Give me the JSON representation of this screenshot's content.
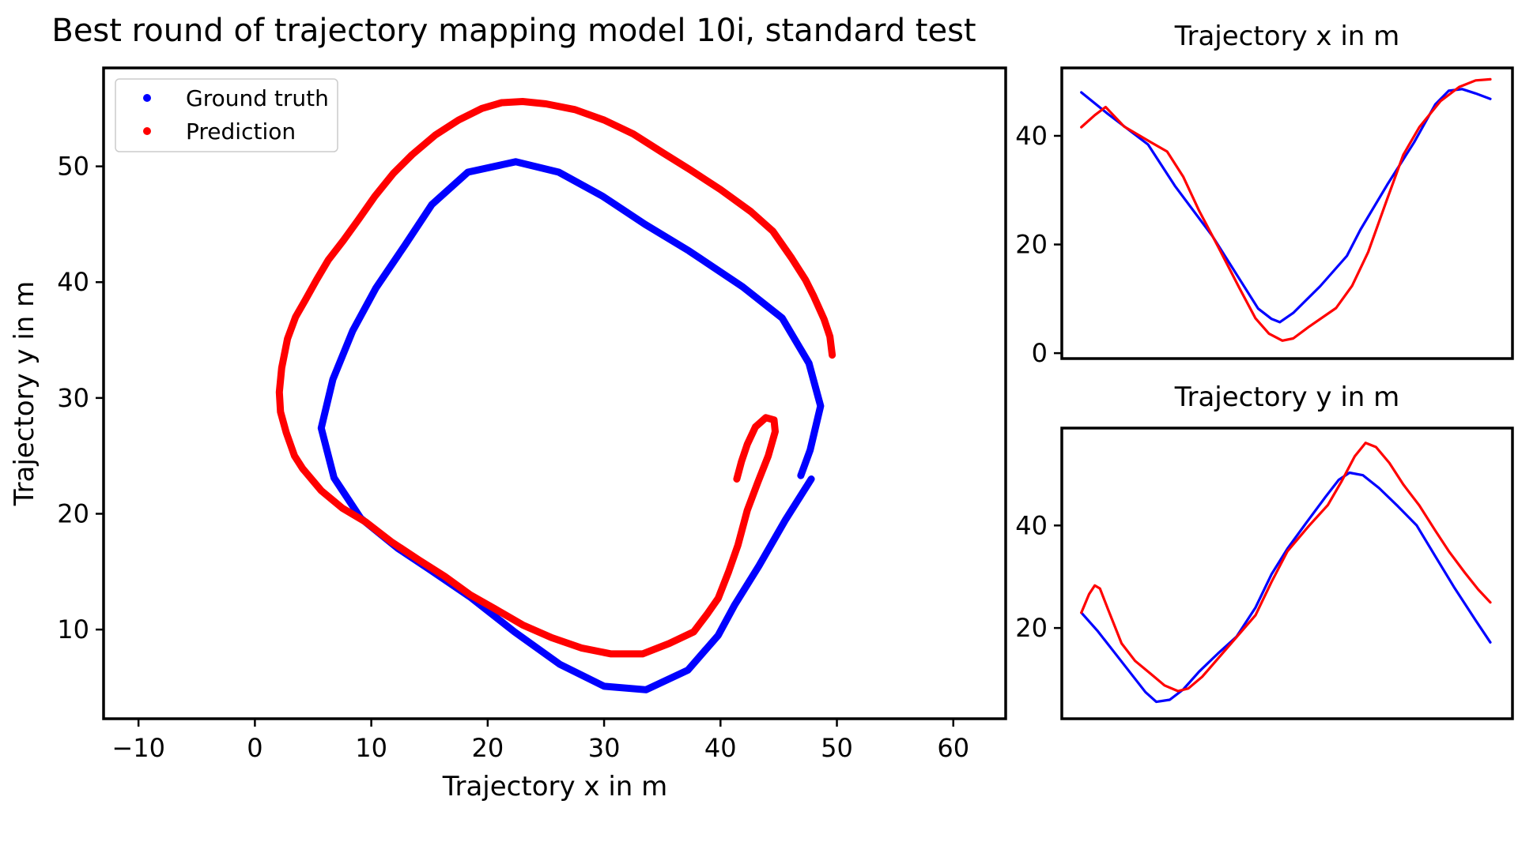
{
  "colors": {
    "ground_truth": "#0000ff",
    "prediction": "#ff0000"
  },
  "chart_data": [
    {
      "type": "scatter",
      "title": "Best round of trajectory mapping model 10i, standard test",
      "xlabel": "Trajectory x in m",
      "ylabel": "Trajectory y in m",
      "xlim": [
        -13,
        64.5
      ],
      "ylim": [
        2.3,
        58.5
      ],
      "xticks": [
        -10,
        0,
        10,
        20,
        30,
        40,
        50,
        60
      ],
      "xtick_labels": [
        "−10",
        "0",
        "10",
        "20",
        "30",
        "40",
        "50",
        "60"
      ],
      "yticks": [
        10,
        20,
        30,
        40,
        50
      ],
      "ytick_labels": [
        "10",
        "20",
        "30",
        "40",
        "50"
      ],
      "grid": false,
      "legend": "top-left",
      "series": [
        {
          "name": "Ground truth",
          "points": [
            [
              47.8,
              23.0
            ],
            [
              45.6,
              19.5
            ],
            [
              43.3,
              15.5
            ],
            [
              41.2,
              12.1
            ],
            [
              39.8,
              9.5
            ],
            [
              37.2,
              6.5
            ],
            [
              33.6,
              4.8
            ],
            [
              30.0,
              5.1
            ],
            [
              26.2,
              7.0
            ],
            [
              22.3,
              9.8
            ],
            [
              18.5,
              12.8
            ],
            [
              15.0,
              15.2
            ],
            [
              12.3,
              17.0
            ],
            [
              9.1,
              19.6
            ],
            [
              6.8,
              23.1
            ],
            [
              5.7,
              27.4
            ],
            [
              6.7,
              31.6
            ],
            [
              8.4,
              35.8
            ],
            [
              10.4,
              39.5
            ],
            [
              12.9,
              43.2
            ],
            [
              15.2,
              46.7
            ],
            [
              18.3,
              49.5
            ],
            [
              22.4,
              50.4
            ],
            [
              26.1,
              49.5
            ],
            [
              29.9,
              47.4
            ],
            [
              33.5,
              45.0
            ],
            [
              37.3,
              42.7
            ],
            [
              41.9,
              39.6
            ],
            [
              45.3,
              36.9
            ],
            [
              47.6,
              33.0
            ],
            [
              48.6,
              29.3
            ],
            [
              47.7,
              25.5
            ],
            [
              46.9,
              23.3
            ]
          ]
        },
        {
          "name": "Prediction",
          "points": [
            [
              49.6,
              33.7
            ],
            [
              49.4,
              35.3
            ],
            [
              48.9,
              36.8
            ],
            [
              48.0,
              38.8
            ],
            [
              47.3,
              40.2
            ],
            [
              46.1,
              42.1
            ],
            [
              44.5,
              44.4
            ],
            [
              42.6,
              46.1
            ],
            [
              40.0,
              48.0
            ],
            [
              37.4,
              49.7
            ],
            [
              35.0,
              51.2
            ],
            [
              32.5,
              52.8
            ],
            [
              30.0,
              54.0
            ],
            [
              27.5,
              54.9
            ],
            [
              25.0,
              55.4
            ],
            [
              23.0,
              55.6
            ],
            [
              21.2,
              55.5
            ],
            [
              19.5,
              55.0
            ],
            [
              17.5,
              54.0
            ],
            [
              15.5,
              52.7
            ],
            [
              13.5,
              51.0
            ],
            [
              11.9,
              49.4
            ],
            [
              10.3,
              47.4
            ],
            [
              8.9,
              45.4
            ],
            [
              7.6,
              43.6
            ],
            [
              6.3,
              41.9
            ],
            [
              5.3,
              40.2
            ],
            [
              4.3,
              38.4
            ],
            [
              3.5,
              37.0
            ],
            [
              2.8,
              35.1
            ],
            [
              2.3,
              32.6
            ],
            [
              2.1,
              30.5
            ],
            [
              2.2,
              28.8
            ],
            [
              2.7,
              27.0
            ],
            [
              3.4,
              25.0
            ],
            [
              4.1,
              23.9
            ],
            [
              5.7,
              22.0
            ],
            [
              7.5,
              20.5
            ],
            [
              9.5,
              19.3
            ],
            [
              11.7,
              17.6
            ],
            [
              14.1,
              16.0
            ],
            [
              16.3,
              14.6
            ],
            [
              18.5,
              13.0
            ],
            [
              20.6,
              11.8
            ],
            [
              23.0,
              10.4
            ],
            [
              25.5,
              9.3
            ],
            [
              28.1,
              8.4
            ],
            [
              30.6,
              7.9
            ],
            [
              33.3,
              7.9
            ],
            [
              35.6,
              8.8
            ],
            [
              37.7,
              9.8
            ],
            [
              38.9,
              11.4
            ],
            [
              39.8,
              12.7
            ],
            [
              40.7,
              15.0
            ],
            [
              41.5,
              17.3
            ],
            [
              42.3,
              20.3
            ],
            [
              43.2,
              22.7
            ],
            [
              44.1,
              25.0
            ],
            [
              44.7,
              27.1
            ],
            [
              44.6,
              28.1
            ],
            [
              43.9,
              28.3
            ],
            [
              43.0,
              27.5
            ],
            [
              42.3,
              26.0
            ],
            [
              41.8,
              24.5
            ],
            [
              41.4,
              23.0
            ]
          ]
        }
      ]
    },
    {
      "type": "line",
      "title": "Trajectory x in m",
      "ylim": [
        -1,
        52.5
      ],
      "yticks": [
        0,
        20,
        40
      ],
      "ytick_labels": [
        "0",
        "20",
        "40"
      ],
      "xlim": [
        -2,
        102
      ],
      "grid": false,
      "series": [
        {
          "name": "Ground truth",
          "points": [
            [
              2.5,
              48.0
            ],
            [
              8.7,
              44.0
            ],
            [
              17.9,
              38.4
            ],
            [
              24.1,
              30.8
            ],
            [
              32.7,
              21.6
            ],
            [
              39.5,
              13.0
            ],
            [
              43.3,
              8.2
            ],
            [
              46.4,
              6.3
            ],
            [
              48.3,
              5.7
            ],
            [
              51.4,
              7.4
            ],
            [
              57.6,
              12.3
            ],
            [
              63.8,
              17.9
            ],
            [
              66.9,
              22.7
            ],
            [
              73.1,
              31.0
            ],
            [
              79.3,
              38.8
            ],
            [
              84.2,
              45.8
            ],
            [
              87.3,
              48.3
            ],
            [
              90.4,
              48.6
            ],
            [
              93.5,
              47.8
            ],
            [
              96.9,
              46.8
            ]
          ]
        },
        {
          "name": "Prediction",
          "points": [
            [
              2.5,
              41.6
            ],
            [
              5.6,
              43.8
            ],
            [
              8.1,
              45.3
            ],
            [
              9.9,
              43.8
            ],
            [
              12.4,
              41.7
            ],
            [
              18.6,
              38.8
            ],
            [
              22.3,
              37.1
            ],
            [
              26.0,
              32.5
            ],
            [
              29.7,
              26.2
            ],
            [
              34.0,
              19.7
            ],
            [
              38.9,
              12.1
            ],
            [
              42.7,
              6.4
            ],
            [
              45.8,
              3.6
            ],
            [
              48.9,
              2.3
            ],
            [
              51.4,
              2.7
            ],
            [
              55.1,
              4.9
            ],
            [
              61.3,
              8.3
            ],
            [
              65.0,
              12.4
            ],
            [
              68.7,
              18.6
            ],
            [
              73.1,
              28.4
            ],
            [
              76.8,
              36.5
            ],
            [
              80.5,
              41.6
            ],
            [
              85.4,
              46.4
            ],
            [
              89.7,
              49.0
            ],
            [
              93.5,
              50.2
            ],
            [
              96.9,
              50.4
            ]
          ]
        }
      ]
    },
    {
      "type": "line",
      "title": "Trajectory y in m",
      "ylim": [
        2.3,
        59
      ],
      "yticks": [
        20,
        40
      ],
      "ytick_labels": [
        "20",
        "40"
      ],
      "xlim": [
        -2,
        102
      ],
      "grid": false,
      "series": [
        {
          "name": "Ground truth",
          "points": [
            [
              2.5,
              23.0
            ],
            [
              6.2,
              19.5
            ],
            [
              9.9,
              15.5
            ],
            [
              13.6,
              11.5
            ],
            [
              17.3,
              7.5
            ],
            [
              19.8,
              5.6
            ],
            [
              22.9,
              6.0
            ],
            [
              26.0,
              8.0
            ],
            [
              29.7,
              11.5
            ],
            [
              34.0,
              15.0
            ],
            [
              38.3,
              18.3
            ],
            [
              42.7,
              24.0
            ],
            [
              46.4,
              30.5
            ],
            [
              50.1,
              35.5
            ],
            [
              54.4,
              40.5
            ],
            [
              58.8,
              45.5
            ],
            [
              61.9,
              48.9
            ],
            [
              64.4,
              50.3
            ],
            [
              67.5,
              49.8
            ],
            [
              71.2,
              47.3
            ],
            [
              75.5,
              43.8
            ],
            [
              79.9,
              40.0
            ],
            [
              84.2,
              34.0
            ],
            [
              88.5,
              28.0
            ],
            [
              93.5,
              21.5
            ],
            [
              96.9,
              17.2
            ]
          ]
        },
        {
          "name": "Prediction",
          "points": [
            [
              2.5,
              23.0
            ],
            [
              4.3,
              26.6
            ],
            [
              5.6,
              28.3
            ],
            [
              6.8,
              27.7
            ],
            [
              8.7,
              23.6
            ],
            [
              11.8,
              17.0
            ],
            [
              14.9,
              13.6
            ],
            [
              18.6,
              11.0
            ],
            [
              21.7,
              8.8
            ],
            [
              24.8,
              7.7
            ],
            [
              27.2,
              8.2
            ],
            [
              30.4,
              10.5
            ],
            [
              34.0,
              14.0
            ],
            [
              38.3,
              18.2
            ],
            [
              42.7,
              22.5
            ],
            [
              46.4,
              29.0
            ],
            [
              50.1,
              35.0
            ],
            [
              55.1,
              40.0
            ],
            [
              59.4,
              44.0
            ],
            [
              62.5,
              48.5
            ],
            [
              65.6,
              53.5
            ],
            [
              68.1,
              56.1
            ],
            [
              70.5,
              55.3
            ],
            [
              73.6,
              52.2
            ],
            [
              76.8,
              48.0
            ],
            [
              80.5,
              43.9
            ],
            [
              84.2,
              39.0
            ],
            [
              87.3,
              35.0
            ],
            [
              91.0,
              30.8
            ],
            [
              94.1,
              27.5
            ],
            [
              96.9,
              25.0
            ]
          ]
        }
      ]
    }
  ]
}
